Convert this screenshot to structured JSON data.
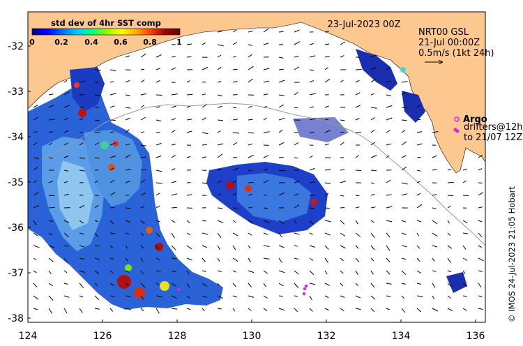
{
  "title": "23-Jul-2023 00Z",
  "colorbar": {
    "label": "std dev of 4hr SST comp",
    "ticks": [
      "0",
      "0.2",
      "0.4",
      "0.6",
      "0.8",
      "1"
    ],
    "range": [
      0,
      1
    ],
    "colors": [
      "#08008a",
      "#0000ff",
      "#0066ff",
      "#00c8ff",
      "#00ff88",
      "#88ff00",
      "#ffff00",
      "#ffb000",
      "#ff4000",
      "#a00000",
      "#6a0000"
    ]
  },
  "legend": {
    "line1": "NRT00 GSL",
    "line2": "21-Jul 00:00Z",
    "line3": "0.5m/s (1kt 24h)",
    "argo_label": "Argo",
    "drifters_line1": "drifters@12h",
    "drifters_line2": "to 21/07 12Z"
  },
  "credit": "© IMOS 24-Jul-2023 21:05 Hobart",
  "map": {
    "lon_range": [
      124,
      136.5
    ],
    "lat_range": [
      -38.1,
      -31.3
    ],
    "x_ticks": [
      "124",
      "126",
      "128",
      "130",
      "132",
      "134",
      "136"
    ],
    "y_ticks": [
      "-32",
      "-33",
      "-34",
      "-35",
      "-36",
      "-37",
      "-38"
    ],
    "land_color": "#fcc890",
    "argo_color": "#e020e0"
  }
}
